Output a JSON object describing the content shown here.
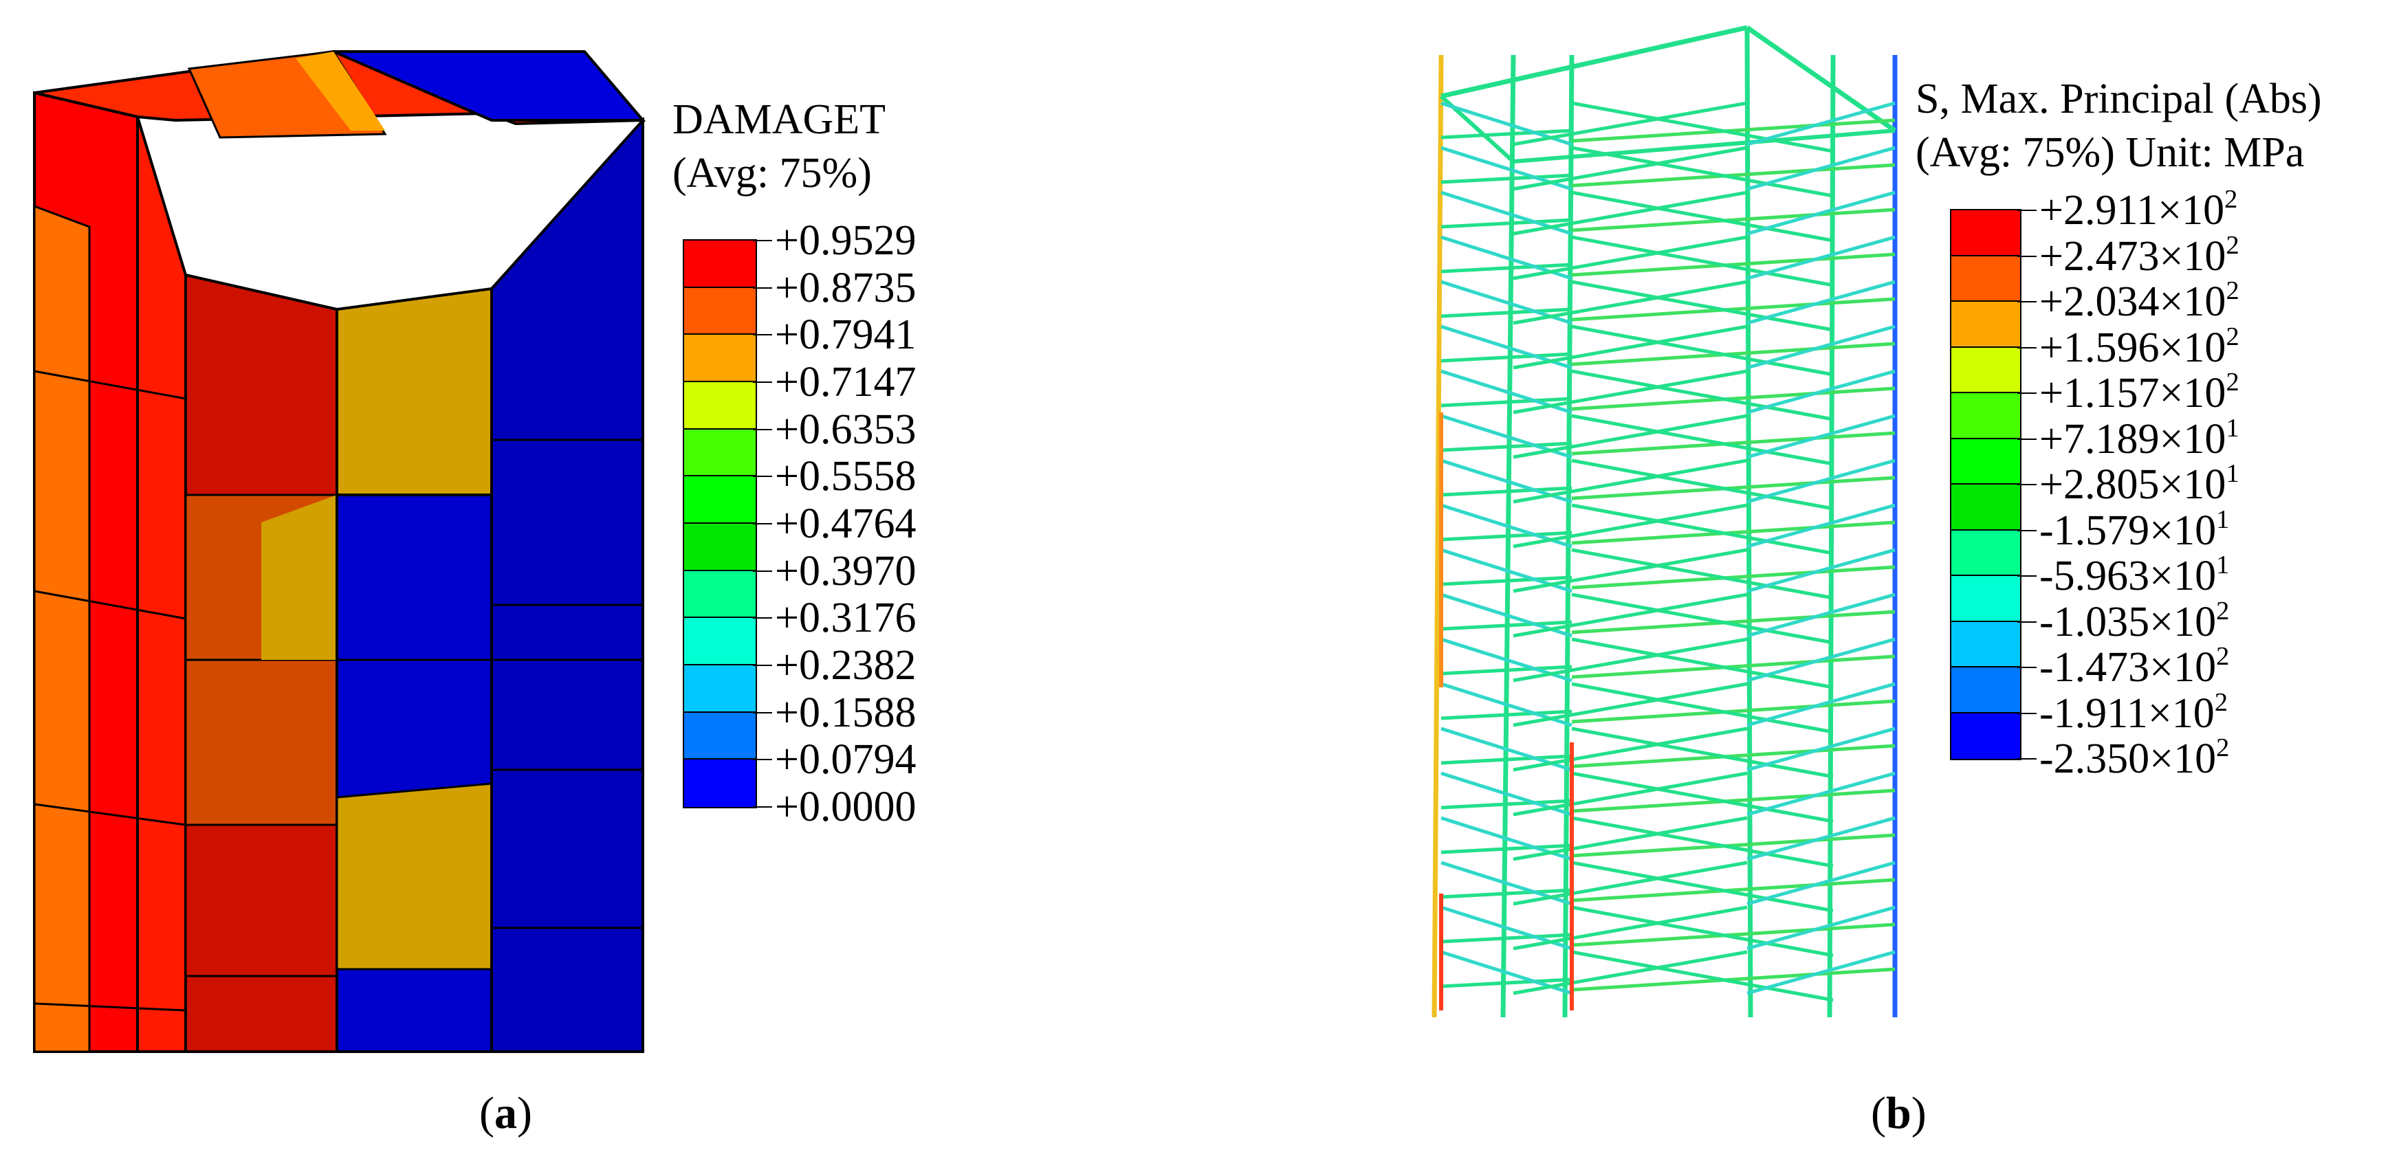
{
  "panel_a": {
    "label_letter": "a",
    "legend": {
      "title_line1": "DAMAGET",
      "title_line2": "(Avg: 75%)",
      "values": [
        "+0.9529",
        "+0.8735",
        "+0.7941",
        "+0.7147",
        "+0.6353",
        "+0.5558",
        "+0.4764",
        "+0.3970",
        "+0.3176",
        "+0.2382",
        "+0.1588",
        "+0.0794",
        "+0.0000"
      ],
      "colors": [
        "#ff0000",
        "#ff5a00",
        "#ffa500",
        "#d2ff00",
        "#46ff00",
        "#00ff00",
        "#00e600",
        "#00ff8c",
        "#00ffd2",
        "#00c8ff",
        "#0078ff",
        "#0000ff"
      ]
    }
  },
  "panel_b": {
    "label_letter": "b",
    "legend": {
      "title_line1": "S, Max. Principal (Abs)",
      "title_line2": "(Avg: 75%)  Unit: MPa",
      "values": [
        {
          "mant": "+2.911×10",
          "exp": "2"
        },
        {
          "mant": "+2.473×10",
          "exp": "2"
        },
        {
          "mant": "+2.034×10",
          "exp": "2"
        },
        {
          "mant": "+1.596×10",
          "exp": "2"
        },
        {
          "mant": "+1.157×10",
          "exp": "2"
        },
        {
          "mant": "+7.189×10",
          "exp": "1"
        },
        {
          "mant": "+2.805×10",
          "exp": "1"
        },
        {
          "mant": "-1.579×10",
          "exp": "1"
        },
        {
          "mant": "-5.963×10",
          "exp": "1"
        },
        {
          "mant": "-1.035×10",
          "exp": "2"
        },
        {
          "mant": "-1.473×10",
          "exp": "2"
        },
        {
          "mant": "-1.911×10",
          "exp": "2"
        },
        {
          "mant": "-2.350×10",
          "exp": "2"
        }
      ],
      "colors": [
        "#ff0000",
        "#ff5a00",
        "#ffa500",
        "#d2ff00",
        "#46ff00",
        "#00ff00",
        "#00e600",
        "#00ff8c",
        "#00ffd2",
        "#00c8ff",
        "#0078ff",
        "#0000ff"
      ]
    }
  }
}
